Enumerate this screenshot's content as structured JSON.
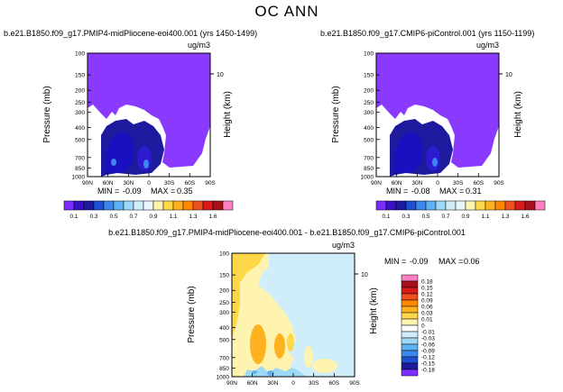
{
  "title": "OC ANN",
  "chart_data": [
    {
      "type": "heatmap",
      "title": "b.e21.B1850.f09_g17.PMIP4-midPliocene-eoi400.001 (yrs 1450-1499)",
      "units": "ug/m3",
      "xlabel": "",
      "ylabel": "Pressure (mb)",
      "ylabel_right": "Height (km)",
      "x_ticks": [
        "90N",
        "60N",
        "30N",
        "0",
        "30S",
        "60S",
        "90S"
      ],
      "y_ticks": [
        100,
        150,
        200,
        250,
        300,
        400,
        500,
        700,
        850,
        1000
      ],
      "y_ticks_right": [
        "10"
      ],
      "yscale": "log",
      "ylim": [
        1000,
        100
      ],
      "stats": {
        "min_label": "MIN =",
        "min": "-0.09",
        "max_label": "MAX =",
        "max": "0.35"
      }
    },
    {
      "type": "heatmap",
      "title": "b.e21.B1850.f09_g17.CMIP6-piControl.001 (yrs 1150-1199)",
      "units": "ug/m3",
      "xlabel": "",
      "ylabel": "Pressure (mb)",
      "ylabel_right": "Height (km)",
      "x_ticks": [
        "90N",
        "60N",
        "30N",
        "0",
        "30S",
        "60S",
        "90S"
      ],
      "y_ticks": [
        100,
        150,
        200,
        250,
        300,
        400,
        500,
        700,
        850,
        1000
      ],
      "y_ticks_right": [
        "10"
      ],
      "yscale": "log",
      "ylim": [
        1000,
        100
      ],
      "stats": {
        "min_label": "MIN =",
        "min": "-0.08",
        "max_label": "MAX =",
        "max": "0.31"
      }
    },
    {
      "type": "heatmap",
      "title": "b.e21.B1850.f09_g17.PMIP4-midPliocene-eoi400.001 - b.e21.B1850.f09_g17.CMIP6-piControl.001",
      "units": "ug/m3",
      "xlabel": "",
      "ylabel": "Pressure (mb)",
      "ylabel_right": "Height (km)",
      "x_ticks": [
        "90N",
        "60N",
        "30N",
        "0",
        "30S",
        "60S",
        "90S"
      ],
      "y_ticks": [
        100,
        150,
        200,
        250,
        300,
        400,
        500,
        700,
        850,
        1000
      ],
      "y_ticks_right": [
        "10"
      ],
      "yscale": "log",
      "ylim": [
        1000,
        100
      ],
      "stats": {
        "min_label": "MIN =",
        "min": "-0.09",
        "max_label": "MAX =",
        "max": "0.06"
      }
    }
  ],
  "colorbar_top": {
    "labels": [
      "0.1",
      "0.3",
      "0.5",
      "0.7",
      "0.9",
      "1.1",
      "1.3",
      "1.6"
    ],
    "colors": [
      "#7b2cff",
      "#3a0fc8",
      "#1d1a9e",
      "#1f4fd6",
      "#3d86ee",
      "#5cb2f4",
      "#9dd8f6",
      "#cfeefa",
      "#e6f6fb",
      "#fff3b0",
      "#ffd84a",
      "#ffb21f",
      "#ff8800",
      "#f0501c",
      "#d81a1a",
      "#a8101a",
      "#ff7fc0"
    ]
  },
  "colorbar_diff": {
    "labels": [
      "0.18",
      "0.15",
      "0.12",
      "0.09",
      "0.06",
      "0.03",
      "0.01",
      "0",
      "-0.01",
      "-0.03",
      "-0.06",
      "-0.09",
      "-0.12",
      "-0.15",
      "-0.18"
    ],
    "colors": [
      "#ff7fc0",
      "#a8101a",
      "#d81a1a",
      "#f0501c",
      "#ff8800",
      "#ffb21f",
      "#ffd84a",
      "#fff3b0",
      "#ffffff",
      "#cfeefa",
      "#9dd8f6",
      "#5cb2f4",
      "#3d86ee",
      "#1f4fd6",
      "#1d1a9e",
      "#7b2cff"
    ]
  }
}
